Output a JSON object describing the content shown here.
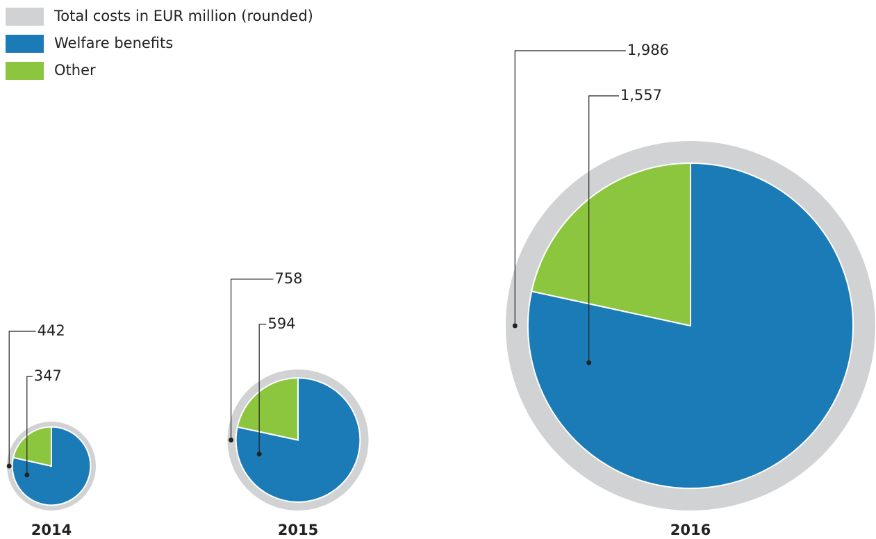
{
  "chart_data": {
    "type": "nested-pie",
    "categories": [
      "2014",
      "2015",
      "2016"
    ],
    "series": [
      {
        "name": "Total costs in EUR million (rounded)",
        "color": "#d1d2d4",
        "values": [
          442,
          758,
          1986
        ],
        "value_labels": [
          "442",
          "758",
          "1,986"
        ]
      },
      {
        "name": "Welfare benefits",
        "color": "#1b7bb7",
        "values": [
          347,
          594,
          1557
        ],
        "value_labels": [
          "347",
          "594",
          "1,557"
        ]
      },
      {
        "name": "Other",
        "color": "#8cc63f",
        "values": [
          95,
          164,
          429
        ]
      }
    ]
  }
}
